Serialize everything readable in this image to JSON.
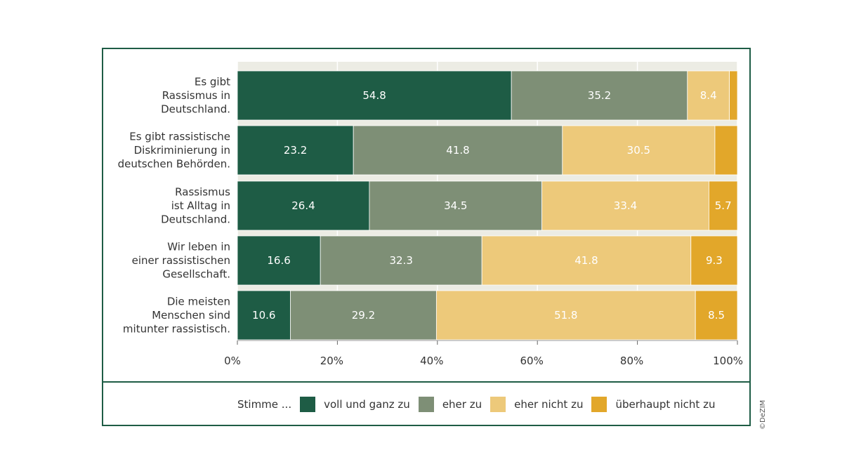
{
  "chart_data": {
    "type": "bar",
    "orientation": "horizontal",
    "stacked": true,
    "categories": [
      [
        "Es gibt",
        "Rassismus in",
        "Deutschland."
      ],
      [
        "Es gibt rassistische",
        "Diskriminierung in",
        "deutschen Behörden."
      ],
      [
        "Rassismus",
        "ist Alltag in",
        "Deutschland."
      ],
      [
        "Wir leben in",
        "einer rassistischen",
        "Gesellschaft."
      ],
      [
        "Die meisten",
        "Menschen sind",
        "mitunter rassistisch."
      ]
    ],
    "series": [
      {
        "name": "voll und ganz zu",
        "color": "#1e5c45",
        "values": [
          54.8,
          23.2,
          26.4,
          16.6,
          10.6
        ]
      },
      {
        "name": "eher zu",
        "color": "#7e8f76",
        "values": [
          35.2,
          41.8,
          34.5,
          32.3,
          29.2
        ]
      },
      {
        "name": "eher nicht zu",
        "color": "#edc97a",
        "values": [
          8.4,
          30.5,
          33.4,
          41.8,
          51.8
        ]
      },
      {
        "name": "überhaupt nicht zu",
        "color": "#e2a72a",
        "values": [
          1.6,
          4.5,
          5.7,
          9.3,
          8.5
        ]
      }
    ],
    "value_labels": [
      [
        "54.8",
        "35.2",
        "8.4",
        ""
      ],
      [
        "23.2",
        "41.8",
        "30.5",
        ""
      ],
      [
        "26.4",
        "34.5",
        "33.4",
        "5.7"
      ],
      [
        "16.6",
        "32.3",
        "41.8",
        "9.3"
      ],
      [
        "10.6",
        "29.2",
        "51.8",
        "8.5"
      ]
    ],
    "xlim": [
      0,
      100
    ],
    "xticks": [
      "0%",
      "20%",
      "40%",
      "60%",
      "80%",
      "100%"
    ],
    "legend_prefix": "Stimme ...",
    "legend_position": "bottom",
    "grid": true
  },
  "credit": "©DeZIM"
}
